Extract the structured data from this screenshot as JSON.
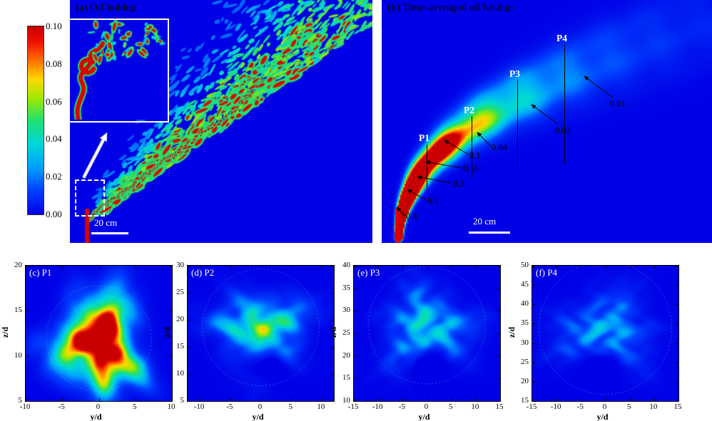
{
  "chart_data": {
    "type": "heatmap",
    "colormap": "jet",
    "colormap_stops": [
      {
        "pos": 0.0,
        "color": "#0000e6"
      },
      {
        "pos": 0.13,
        "color": "#0040ff"
      },
      {
        "pos": 0.25,
        "color": "#00a0ff"
      },
      {
        "pos": 0.38,
        "color": "#00d8d8"
      },
      {
        "pos": 0.5,
        "color": "#20e070"
      },
      {
        "pos": 0.62,
        "color": "#a0e800"
      },
      {
        "pos": 0.72,
        "color": "#ffd800"
      },
      {
        "pos": 0.82,
        "color": "#ff7000"
      },
      {
        "pos": 0.92,
        "color": "#f01000"
      },
      {
        "pos": 1.0,
        "color": "#c80000"
      }
    ],
    "colorbar": {
      "min": 0.0,
      "max": 0.1,
      "ticks": [
        "0.10",
        "0.08",
        "0.06",
        "0.04",
        "0.02",
        "0.00"
      ]
    },
    "panels": [
      {
        "id": "a",
        "title": "(a) Oil holdup",
        "kind": "instantaneous-oil-holdup-field",
        "scale_bar": "20 cm",
        "features": [
          "inset-zoom-of-nozzle-region",
          "flow-direction-arrow",
          "dashed-sampling-box",
          "red-nozzle-jet"
        ]
      },
      {
        "id": "b",
        "title": "(b) Time-averaged oil holdup",
        "kind": "time-averaged-oil-holdup-field",
        "scale_bar": "20 cm",
        "profile_stations": [
          "P1",
          "P2",
          "P3",
          "P4"
        ],
        "contour_values": [
          "0.8",
          "0.5",
          "0.3",
          "0.16",
          "0.1",
          "0.04",
          "0.02",
          "0.01"
        ]
      },
      {
        "id": "c",
        "title": "(c) P1",
        "xlabel": "y/d",
        "ylabel": "z/d",
        "xlim": [
          -10,
          10
        ],
        "ylim": [
          5,
          20
        ],
        "xticks": [
          -10,
          -5,
          0,
          5,
          10
        ],
        "yticks": [
          5,
          10,
          15,
          20
        ],
        "blob": {
          "center_yd": 0,
          "center_zd": 11.5,
          "radius_d": 4.5,
          "peak_holdup": 0.14,
          "notch": 0
        }
      },
      {
        "id": "d",
        "title": "(d) P2",
        "xlabel": "y/d",
        "ylabel": "z/d",
        "xlim": [
          -12,
          12
        ],
        "ylim": [
          5,
          30
        ],
        "xticks": [
          -10,
          -5,
          0,
          5,
          10
        ],
        "yticks": [
          5,
          10,
          15,
          20,
          25,
          30
        ],
        "blob": {
          "center_yd": 0,
          "center_zd": 18,
          "radius_d": 6,
          "peak_holdup": 0.055,
          "notch": 0.5
        }
      },
      {
        "id": "e",
        "title": "(e) P3",
        "xlabel": "y/d",
        "ylabel": "z/d",
        "xlim": [
          -15,
          15
        ],
        "ylim": [
          10,
          40
        ],
        "xticks": [
          -15,
          -10,
          -5,
          0,
          5,
          10,
          15
        ],
        "yticks": [
          10,
          15,
          20,
          25,
          30,
          35,
          40
        ],
        "blob": {
          "center_yd": 0,
          "center_zd": 26,
          "radius_d": 7.5,
          "peak_holdup": 0.038,
          "notch": 0.45
        }
      },
      {
        "id": "f",
        "title": "(f) P4",
        "xlabel": "y/d",
        "ylabel": "z/d",
        "xlim": [
          -15,
          15
        ],
        "ylim": [
          15,
          50
        ],
        "xticks": [
          -15,
          -10,
          -5,
          0,
          5,
          10,
          15
        ],
        "yticks": [
          15,
          20,
          25,
          30,
          35,
          40,
          45,
          50
        ],
        "blob": {
          "center_yd": 0,
          "center_zd": 33,
          "radius_d": 8.5,
          "peak_holdup": 0.028,
          "notch": 0.4
        }
      }
    ],
    "colors": {
      "field_background_blue": "#0000e6",
      "core_red": "#dd0000",
      "annotation_white": "#ffffff",
      "text_black": "#000000"
    }
  }
}
